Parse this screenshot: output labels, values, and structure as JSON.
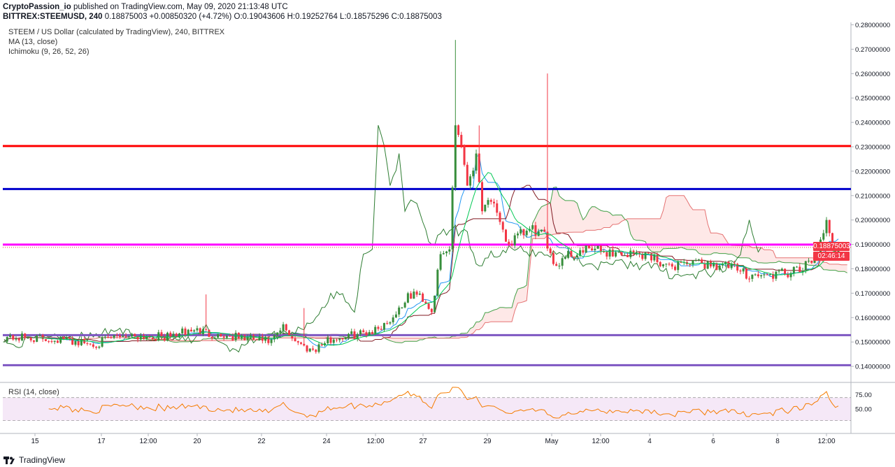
{
  "header": {
    "author": "CryptoPassion_io",
    "published": "published on TradingView.com, May 09, 2020 21:13:48 UTC",
    "symbol": "BITTREX:STEEMUSD, 240",
    "quote": "0.18875003 +0.00850320 (+4.72%) O:0.19043606 H:0.19252764 L:0.18575296 C:0.18875003"
  },
  "legend": {
    "line1": "STEEM / US Dollar (calculated by TradingView), 240, BITTREX",
    "line2": "MA (13, close)",
    "line3": "Ichimoku (9, 26, 52, 26)"
  },
  "price_tag": {
    "price": "0.18875003",
    "countdown": "02:46:14"
  },
  "rsi": {
    "label": "RSI (14, close)",
    "levels": [
      "75.00",
      "50.00"
    ]
  },
  "branding": {
    "name": "TradingView"
  },
  "colors": {
    "up": "#388e3c",
    "down": "#f23645",
    "ma": "#00c853",
    "ichimoku_lead": "#2e7d32",
    "red_level": "#ff0000",
    "blue_level": "#0000cc",
    "magenta_level": "#ff00ff",
    "purple_level": "#7e57c2",
    "rsi": "#f57c00"
  },
  "chart_data": {
    "type": "candlestick",
    "price_axis": {
      "min": 0.134,
      "max": 0.281,
      "ticks": [
        "0.28000000",
        "0.27000000",
        "0.26000000",
        "0.25000000",
        "0.24000000",
        "0.23000000",
        "0.22000000",
        "0.21000000",
        "0.20000000",
        "0.19000000",
        "0.18000000",
        "0.17000000",
        "0.16000000",
        "0.15000000",
        "0.14000000"
      ]
    },
    "time_axis": {
      "labels": [
        "15",
        "17",
        "12:00",
        "20",
        "22",
        "24",
        "12:00",
        "27",
        "29",
        "May",
        "12:00",
        "4",
        "6",
        "8",
        "12:00"
      ]
    },
    "horizontal_levels": [
      {
        "price": 0.2303,
        "color": "#ff0000"
      },
      {
        "price": 0.2127,
        "color": "#0000cc"
      },
      {
        "price": 0.1899,
        "color": "#ff00ff"
      },
      {
        "price": 0.1528,
        "color": "#7e57c2"
      },
      {
        "price": 0.1405,
        "color": "#7e57c2"
      }
    ],
    "last_price": 0.18875003
  }
}
